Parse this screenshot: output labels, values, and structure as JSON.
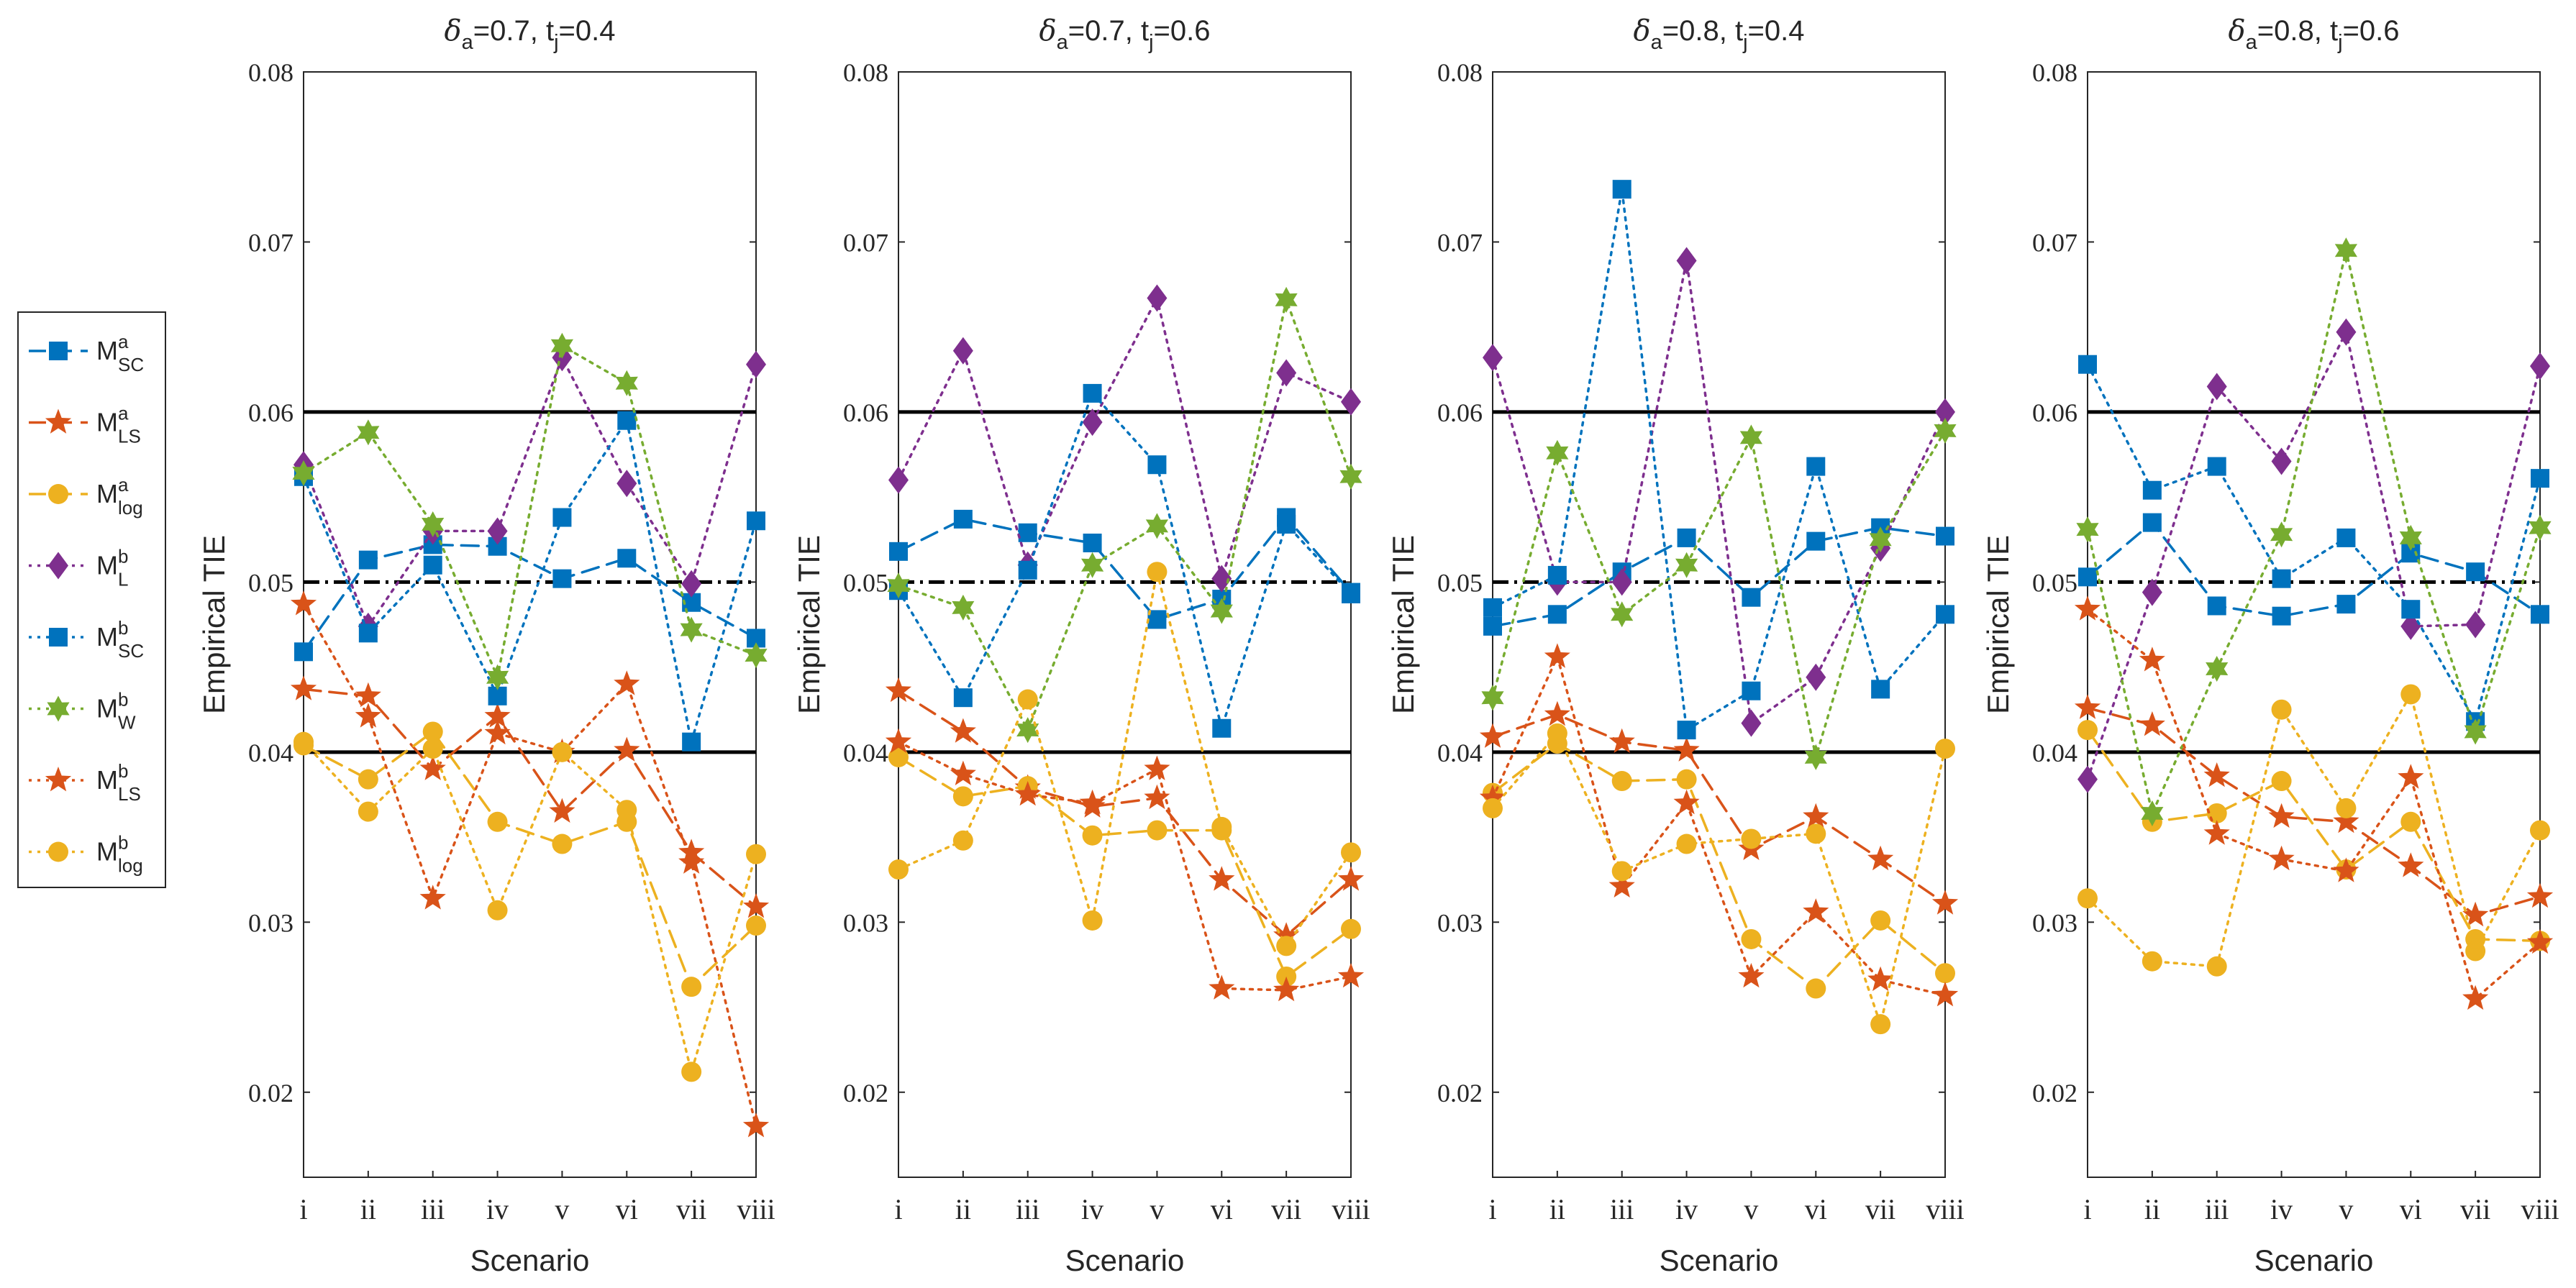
{
  "chart_data": {
    "type": "line",
    "ylabel": "Empirical TIE",
    "xlabel": "Scenario",
    "ylim": [
      0.015,
      0.08
    ],
    "yticks": [
      "0.02",
      "0.03",
      "0.04",
      "0.05",
      "0.06",
      "0.07",
      "0.08"
    ],
    "categories": [
      "i",
      "ii",
      "iii",
      "iv",
      "v",
      "vi",
      "vii",
      "viii"
    ],
    "reference_lines": [
      {
        "value": 0.06,
        "style": "solid"
      },
      {
        "value": 0.05,
        "style": "dash-dot"
      },
      {
        "value": 0.04,
        "style": "solid"
      }
    ],
    "legend": [
      {
        "base": "M",
        "sup": "a",
        "sub": "SC",
        "color": "#0072BD",
        "marker": "square",
        "line": "dashed"
      },
      {
        "base": "M",
        "sup": "a",
        "sub": "LS",
        "color": "#D95319",
        "marker": "star",
        "line": "dashed"
      },
      {
        "base": "M",
        "sup": "a",
        "sub": "log",
        "color": "#EDB120",
        "marker": "circle",
        "line": "dashed"
      },
      {
        "base": "M",
        "sup": "b",
        "sub": "L",
        "color": "#7E2F8E",
        "marker": "diamond",
        "line": "dotted"
      },
      {
        "base": "M",
        "sup": "b",
        "sub": "SC",
        "color": "#0072BD",
        "marker": "square",
        "line": "dotted"
      },
      {
        "base": "M",
        "sup": "b",
        "sub": "W",
        "color": "#77AC30",
        "marker": "hexagram",
        "line": "dotted"
      },
      {
        "base": "M",
        "sup": "b",
        "sub": "LS",
        "color": "#D95319",
        "marker": "star",
        "line": "dotted"
      },
      {
        "base": "M",
        "sup": "b",
        "sub": "log",
        "color": "#EDB120",
        "marker": "circle",
        "line": "dotted"
      }
    ],
    "panels": [
      {
        "title_parts": [
          "δ",
          "a",
          "=0.7, t",
          "j",
          "=0.4"
        ],
        "series": [
          {
            "values": [
              0.0459,
              0.0513,
              0.0522,
              0.0521,
              0.0502,
              0.0514,
              0.0488,
              0.0467
            ]
          },
          {
            "values": [
              0.0437,
              0.0433,
              0.039,
              0.0421,
              0.0365,
              0.0401,
              0.0341,
              0.0309
            ]
          },
          {
            "values": [
              0.0404,
              0.0384,
              0.0412,
              0.0359,
              0.0346,
              0.0359,
              0.0262,
              0.0298
            ]
          },
          {
            "values": [
              0.0569,
              0.0474,
              0.053,
              0.053,
              0.0632,
              0.0558,
              0.0499,
              0.0628
            ]
          },
          {
            "values": [
              0.0562,
              0.047,
              0.051,
              0.0433,
              0.0538,
              0.0595,
              0.0406,
              0.0536
            ]
          },
          {
            "values": [
              0.0564,
              0.0588,
              0.0534,
              0.0444,
              0.0639,
              0.0617,
              0.0472,
              0.0457
            ]
          },
          {
            "values": [
              0.0487,
              0.0421,
              0.0314,
              0.0411,
              0.04,
              0.044,
              0.0335,
              0.018
            ]
          },
          {
            "values": [
              0.0406,
              0.0365,
              0.0402,
              0.0307,
              0.04,
              0.0366,
              0.0212,
              0.034
            ]
          }
        ]
      },
      {
        "title_parts": [
          "δ",
          "a",
          "=0.7, t",
          "j",
          "=0.6"
        ],
        "series": [
          {
            "values": [
              0.0518,
              0.0537,
              0.0529,
              0.0523,
              0.0478,
              0.049,
              0.0538,
              0.0494
            ]
          },
          {
            "values": [
              0.0436,
              0.0412,
              0.0379,
              0.0368,
              0.0373,
              0.0325,
              0.0292,
              0.0325
            ]
          },
          {
            "values": [
              0.0397,
              0.0374,
              0.038,
              0.0351,
              0.0354,
              0.0354,
              0.0268,
              0.0296
            ]
          },
          {
            "values": [
              0.056,
              0.0636,
              0.051,
              0.0594,
              0.0667,
              0.0502,
              0.0623,
              0.0606
            ]
          },
          {
            "values": [
              0.0495,
              0.0432,
              0.0507,
              0.0611,
              0.0569,
              0.0414,
              0.0534,
              0.0493
            ]
          },
          {
            "values": [
              0.0498,
              0.0485,
              0.0413,
              0.051,
              0.0533,
              0.0483,
              0.0666,
              0.0562
            ]
          },
          {
            "values": [
              0.0406,
              0.0387,
              0.0375,
              0.037,
              0.039,
              0.0261,
              0.026,
              0.0268
            ]
          },
          {
            "values": [
              0.0331,
              0.0348,
              0.0431,
              0.0301,
              0.0506,
              0.0356,
              0.0286,
              0.0341
            ]
          }
        ]
      },
      {
        "title_parts": [
          "δ",
          "a",
          "=0.8, t",
          "j",
          "=0.4"
        ],
        "series": [
          {
            "values": [
              0.0474,
              0.0481,
              0.0506,
              0.0526,
              0.0491,
              0.0524,
              0.0532,
              0.0527
            ]
          },
          {
            "values": [
              0.0409,
              0.0422,
              0.0406,
              0.0401,
              0.0343,
              0.0362,
              0.0337,
              0.0311
            ]
          },
          {
            "values": [
              0.0376,
              0.0405,
              0.0383,
              0.0384,
              0.029,
              0.0261,
              0.0301,
              0.027
            ]
          },
          {
            "values": [
              0.0632,
              0.05,
              0.05,
              0.0689,
              0.0417,
              0.0444,
              0.052,
              0.06
            ]
          },
          {
            "values": [
              0.0485,
              0.0504,
              0.0731,
              0.0413,
              0.0436,
              0.0568,
              0.0437,
              0.0481
            ]
          },
          {
            "values": [
              0.0432,
              0.0576,
              0.0481,
              0.051,
              0.0585,
              0.0397,
              0.0525,
              0.0589
            ]
          },
          {
            "values": [
              0.0373,
              0.0456,
              0.0321,
              0.037,
              0.0268,
              0.0306,
              0.0266,
              0.0257
            ]
          },
          {
            "values": [
              0.0367,
              0.0411,
              0.033,
              0.0346,
              0.0349,
              0.0352,
              0.024,
              0.0402
            ]
          }
        ]
      },
      {
        "title_parts": [
          "δ",
          "a",
          "=0.8, t",
          "j",
          "=0.6"
        ],
        "series": [
          {
            "values": [
              0.0503,
              0.0535,
              0.0486,
              0.048,
              0.0487,
              0.0517,
              0.0506,
              0.0481
            ]
          },
          {
            "values": [
              0.0426,
              0.0416,
              0.0386,
              0.0362,
              0.0359,
              0.0333,
              0.0304,
              0.0315
            ]
          },
          {
            "values": [
              0.0413,
              0.0359,
              0.0364,
              0.0383,
              0.0331,
              0.0359,
              0.029,
              0.0289
            ]
          },
          {
            "values": [
              0.0384,
              0.0494,
              0.0615,
              0.0571,
              0.0647,
              0.0474,
              0.0475,
              0.0627
            ]
          },
          {
            "values": [
              0.0628,
              0.0554,
              0.0568,
              0.0502,
              0.0526,
              0.0484,
              0.0418,
              0.0561
            ]
          },
          {
            "values": [
              0.0531,
              0.0364,
              0.0449,
              0.0528,
              0.0695,
              0.0526,
              0.0412,
              0.0532
            ]
          },
          {
            "values": [
              0.0484,
              0.0454,
              0.0352,
              0.0337,
              0.033,
              0.0385,
              0.0255,
              0.0288
            ]
          },
          {
            "values": [
              0.0314,
              0.0277,
              0.0274,
              0.0425,
              0.0367,
              0.0434,
              0.0283,
              0.0354
            ]
          }
        ]
      }
    ]
  }
}
